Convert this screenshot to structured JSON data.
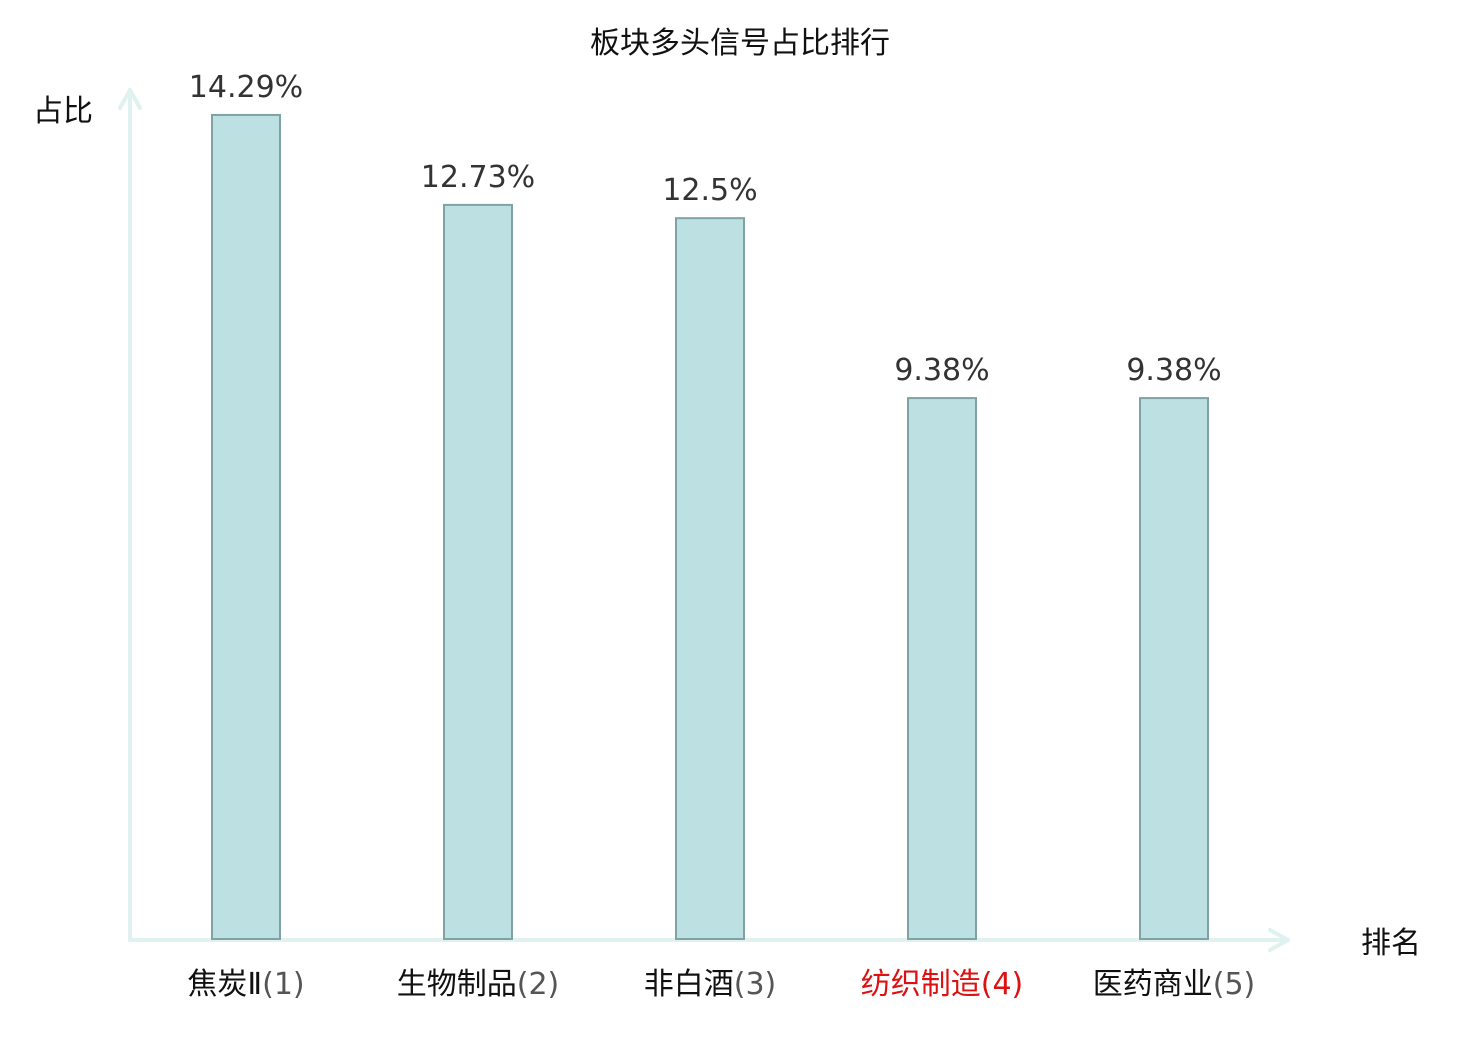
{
  "chart_data": {
    "type": "bar",
    "title": "板块多头信号占比排行",
    "xlabel": "排名",
    "ylabel": "占比",
    "categories": [
      {
        "name": "焦炭Ⅱ",
        "rank": "(1)",
        "highlight": false
      },
      {
        "name": "生物制品",
        "rank": "(2)",
        "highlight": false
      },
      {
        "name": "非白酒",
        "rank": "(3)",
        "highlight": false
      },
      {
        "name": "纺织制造",
        "rank": "(4)",
        "highlight": true
      },
      {
        "name": "医药商业",
        "rank": "(5)",
        "highlight": false
      }
    ],
    "values": [
      14.29,
      12.73,
      12.5,
      9.38,
      9.38
    ],
    "value_labels": [
      "14.29%",
      "12.73%",
      "12.5%",
      "9.38%",
      "9.38%"
    ],
    "ylim": [
      0,
      15
    ],
    "grid": false,
    "legend": "none"
  },
  "colors": {
    "bar_fill": "#bde0e2",
    "bar_stroke": "#7fa3a5",
    "axis": "#dff2ef",
    "text": "#111111",
    "value_text": "#333333",
    "rank_text": "#555555",
    "highlight": "#dd1111"
  }
}
